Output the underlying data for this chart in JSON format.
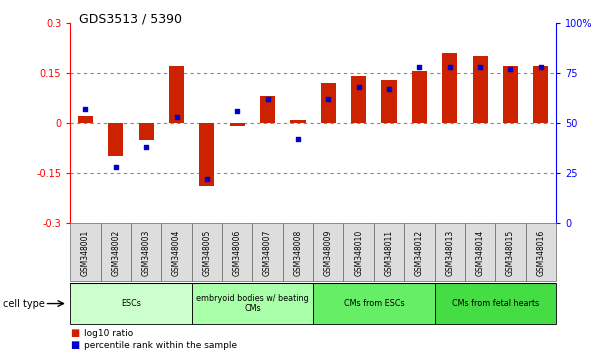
{
  "title": "GDS3513 / 5390",
  "samples": [
    "GSM348001",
    "GSM348002",
    "GSM348003",
    "GSM348004",
    "GSM348005",
    "GSM348006",
    "GSM348007",
    "GSM348008",
    "GSM348009",
    "GSM348010",
    "GSM348011",
    "GSM348012",
    "GSM348013",
    "GSM348014",
    "GSM348015",
    "GSM348016"
  ],
  "log10_ratio": [
    0.02,
    -0.1,
    -0.05,
    0.17,
    -0.19,
    -0.01,
    0.08,
    0.01,
    0.12,
    0.14,
    0.13,
    0.155,
    0.21,
    0.2,
    0.17,
    0.17
  ],
  "percentile_rank": [
    57,
    28,
    38,
    53,
    22,
    56,
    62,
    42,
    62,
    68,
    67,
    78,
    78,
    78,
    77,
    78
  ],
  "cell_types": [
    {
      "label": "ESCs",
      "start": 0,
      "end": 4,
      "color": "#ccffcc"
    },
    {
      "label": "embryoid bodies w/ beating\nCMs",
      "start": 4,
      "end": 8,
      "color": "#aaffaa"
    },
    {
      "label": "CMs from ESCs",
      "start": 8,
      "end": 12,
      "color": "#66ee66"
    },
    {
      "label": "CMs from fetal hearts",
      "start": 12,
      "end": 16,
      "color": "#44dd44"
    }
  ],
  "bar_color": "#cc2200",
  "dot_color": "#0000cc",
  "ylim_left": [
    -0.3,
    0.3
  ],
  "ylim_right": [
    0,
    100
  ],
  "yticks_left": [
    -0.3,
    -0.15,
    0.0,
    0.15,
    0.3
  ],
  "ytick_labels_left": [
    "-0.3",
    "-0.15",
    "0",
    "0.15",
    "0.3"
  ],
  "yticks_right": [
    0,
    25,
    50,
    75,
    100
  ],
  "ytick_labels_right": [
    "0",
    "25",
    "50",
    "75",
    "100%"
  ],
  "hlines": [
    -0.15,
    0.0,
    0.15
  ],
  "background_color": "#ffffff",
  "cell_type_label": "cell type",
  "bar_width": 0.5
}
